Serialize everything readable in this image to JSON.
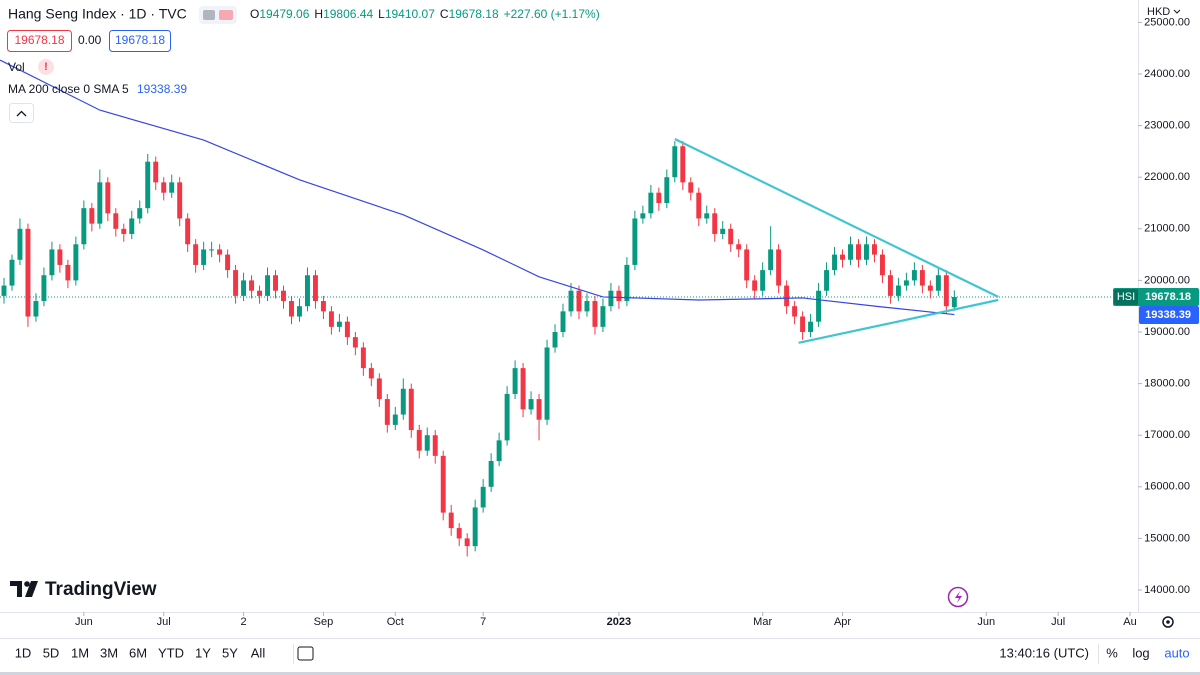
{
  "chart_data": {
    "type": "candlestick",
    "title": "Hang Seng Index · 1D · TVC",
    "ohlc_labels": [
      "O",
      "H",
      "L",
      "C"
    ],
    "change_label": "+227.60 (+1.17%)",
    "spread_label": "0.00",
    "volume_label": "Vol",
    "volume_alert": "!",
    "currency": "HKD",
    "symbol": "HSI",
    "brand": "TradingView",
    "clock": "13:40:16 (UTC)",
    "ranges": [
      "1D",
      "5D",
      "1M",
      "3M",
      "6M",
      "YTD",
      "1Y",
      "5Y",
      "All"
    ],
    "scale_options": [
      "%",
      "log",
      "auto"
    ],
    "up_color": "#089981",
    "down_color": "#f23645",
    "xlim": [
      -0.5,
      142
    ],
    "ylim": [
      13225,
      25434
    ],
    "xticks": [
      {
        "value": 10,
        "label": "Jun"
      },
      {
        "value": 20,
        "label": "Jul"
      },
      {
        "value": 30,
        "label": "2"
      },
      {
        "value": 40,
        "label": "Sep"
      },
      {
        "value": 49,
        "label": "Oct"
      },
      {
        "value": 60,
        "label": "7"
      },
      {
        "value": 77,
        "label": "2023"
      },
      {
        "value": 95,
        "label": "Mar"
      },
      {
        "value": 105,
        "label": "Apr"
      },
      {
        "value": 123,
        "label": "Jun"
      },
      {
        "value": 132,
        "label": "Jul"
      },
      {
        "value": 141,
        "label": "Au"
      }
    ],
    "yticks": [
      {
        "value": 25000,
        "label": "25000.00"
      },
      {
        "value": 24000,
        "label": "24000.00"
      },
      {
        "value": 23000,
        "label": "23000.00"
      },
      {
        "value": 22000,
        "label": "22000.00"
      },
      {
        "value": 21000,
        "label": "21000.00"
      },
      {
        "value": 20000,
        "label": "20000.00"
      },
      {
        "value": 19000,
        "label": "19000.00"
      },
      {
        "value": 18000,
        "label": "18000.00"
      },
      {
        "value": 17000,
        "label": "17000.00"
      },
      {
        "value": 16000,
        "label": "16000.00"
      },
      {
        "value": 15000,
        "label": "15000.00"
      },
      {
        "value": 14000,
        "label": "14000.00"
      }
    ],
    "candles": [
      [
        19700,
        20050,
        19550,
        19900
      ],
      [
        19900,
        20500,
        19800,
        20400
      ],
      [
        20400,
        21200,
        20300,
        21000
      ],
      [
        21000,
        21100,
        19100,
        19300
      ],
      [
        19300,
        19750,
        19200,
        19600
      ],
      [
        19600,
        20250,
        19500,
        20100
      ],
      [
        20100,
        20750,
        20000,
        20600
      ],
      [
        20600,
        20700,
        20150,
        20300
      ],
      [
        20300,
        20400,
        19850,
        20000
      ],
      [
        20000,
        20850,
        19900,
        20700
      ],
      [
        20700,
        21550,
        20600,
        21400
      ],
      [
        21400,
        21500,
        20950,
        21100
      ],
      [
        21100,
        22150,
        21000,
        21900
      ],
      [
        21900,
        22000,
        21150,
        21300
      ],
      [
        21300,
        21400,
        20850,
        21000
      ],
      [
        21000,
        21100,
        20750,
        20900
      ],
      [
        20900,
        21350,
        20800,
        21200
      ],
      [
        21200,
        21550,
        21100,
        21400
      ],
      [
        21400,
        22450,
        21300,
        22300
      ],
      [
        22300,
        22400,
        21750,
        21900
      ],
      [
        21900,
        22000,
        21550,
        21700
      ],
      [
        21700,
        22050,
        21600,
        21900
      ],
      [
        21900,
        22000,
        21050,
        21200
      ],
      [
        21200,
        21300,
        20550,
        20700
      ],
      [
        20700,
        20800,
        20150,
        20300
      ],
      [
        20300,
        20750,
        20200,
        20600
      ],
      [
        20600,
        20750,
        20450,
        20600
      ],
      [
        20600,
        20700,
        20350,
        20500
      ],
      [
        20500,
        20600,
        20050,
        20200
      ],
      [
        20200,
        20300,
        19550,
        19700
      ],
      [
        19700,
        20150,
        19600,
        20000
      ],
      [
        20000,
        20100,
        19650,
        19800
      ],
      [
        19800,
        19900,
        19550,
        19700
      ],
      [
        19700,
        20250,
        19600,
        20100
      ],
      [
        20100,
        20200,
        19650,
        19800
      ],
      [
        19800,
        19900,
        19450,
        19600
      ],
      [
        19600,
        19700,
        19150,
        19300
      ],
      [
        19300,
        19650,
        19200,
        19500
      ],
      [
        19500,
        20250,
        19400,
        20100
      ],
      [
        20100,
        20200,
        19450,
        19600
      ],
      [
        19600,
        19700,
        19250,
        19400
      ],
      [
        19400,
        19500,
        18950,
        19100
      ],
      [
        19100,
        19350,
        19000,
        19200
      ],
      [
        19200,
        19300,
        18750,
        18900
      ],
      [
        18900,
        19000,
        18550,
        18700
      ],
      [
        18700,
        18800,
        18150,
        18300
      ],
      [
        18300,
        18400,
        17950,
        18100
      ],
      [
        18100,
        18200,
        17550,
        17700
      ],
      [
        17700,
        17800,
        17050,
        17200
      ],
      [
        17200,
        17550,
        17100,
        17400
      ],
      [
        17400,
        18100,
        17300,
        17900
      ],
      [
        17900,
        18000,
        16950,
        17100
      ],
      [
        17100,
        17200,
        16550,
        16700
      ],
      [
        16700,
        17150,
        16600,
        17000
      ],
      [
        17000,
        17100,
        16450,
        16600
      ],
      [
        16600,
        16700,
        15350,
        15500
      ],
      [
        15500,
        15650,
        15050,
        15200
      ],
      [
        15200,
        15300,
        14850,
        15000
      ],
      [
        15000,
        15100,
        14650,
        14850
      ],
      [
        14850,
        15750,
        14750,
        15600
      ],
      [
        15600,
        16150,
        15500,
        16000
      ],
      [
        16000,
        16650,
        15900,
        16500
      ],
      [
        16500,
        17050,
        16400,
        16900
      ],
      [
        16900,
        17950,
        16800,
        17800
      ],
      [
        17800,
        18450,
        17700,
        18300
      ],
      [
        18300,
        18400,
        17350,
        17500
      ],
      [
        17500,
        17850,
        17400,
        17700
      ],
      [
        17700,
        17800,
        16900,
        17300
      ],
      [
        17300,
        18850,
        17200,
        18700
      ],
      [
        18700,
        19150,
        18600,
        19000
      ],
      [
        19000,
        19550,
        18900,
        19400
      ],
      [
        19400,
        19950,
        19300,
        19800
      ],
      [
        19800,
        19900,
        19250,
        19400
      ],
      [
        19400,
        19750,
        19300,
        19600
      ],
      [
        19600,
        19700,
        18950,
        19100
      ],
      [
        19100,
        19650,
        19000,
        19500
      ],
      [
        19500,
        19950,
        19400,
        19800
      ],
      [
        19800,
        19900,
        19450,
        19600
      ],
      [
        19600,
        20450,
        19500,
        20300
      ],
      [
        20300,
        21350,
        20200,
        21200
      ],
      [
        21200,
        21450,
        21100,
        21300
      ],
      [
        21300,
        21850,
        21200,
        21700
      ],
      [
        21700,
        21800,
        21350,
        21500
      ],
      [
        21500,
        22150,
        21400,
        22000
      ],
      [
        22000,
        22700,
        21900,
        22600
      ],
      [
        22600,
        22700,
        21750,
        21900
      ],
      [
        21900,
        22000,
        21550,
        21700
      ],
      [
        21700,
        21800,
        21050,
        21200
      ],
      [
        21200,
        21450,
        21100,
        21300
      ],
      [
        21300,
        21400,
        20750,
        20900
      ],
      [
        20900,
        21150,
        20800,
        21000
      ],
      [
        21000,
        21100,
        20550,
        20700
      ],
      [
        20700,
        20800,
        20450,
        20600
      ],
      [
        20600,
        20700,
        19850,
        20000
      ],
      [
        20000,
        20100,
        19650,
        19800
      ],
      [
        19800,
        20350,
        19700,
        20200
      ],
      [
        20200,
        21050,
        20100,
        20600
      ],
      [
        20600,
        20700,
        19750,
        19900
      ],
      [
        19900,
        20000,
        19350,
        19500
      ],
      [
        19500,
        19600,
        19150,
        19300
      ],
      [
        19300,
        19400,
        18850,
        19000
      ],
      [
        19000,
        19350,
        18900,
        19200
      ],
      [
        19200,
        19950,
        19100,
        19800
      ],
      [
        19800,
        20350,
        19700,
        20200
      ],
      [
        20200,
        20650,
        20100,
        20500
      ],
      [
        20500,
        20600,
        20250,
        20400
      ],
      [
        20400,
        20850,
        20300,
        20700
      ],
      [
        20700,
        20800,
        20250,
        20400
      ],
      [
        20400,
        20850,
        20300,
        20700
      ],
      [
        20700,
        20800,
        20350,
        20500
      ],
      [
        20500,
        20600,
        19950,
        20100
      ],
      [
        20100,
        20200,
        19550,
        19700
      ],
      [
        19700,
        20050,
        19600,
        19900
      ],
      [
        19900,
        20150,
        19800,
        20000
      ],
      [
        20000,
        20350,
        19900,
        20200
      ],
      [
        20200,
        20300,
        19750,
        19900
      ],
      [
        19900,
        20000,
        19650,
        19800
      ],
      [
        19800,
        20250,
        19700,
        20100
      ],
      [
        20100,
        20200,
        19350,
        19500
      ],
      [
        19479.06,
        19806.44,
        19410.07,
        19678.18
      ]
    ],
    "ma": {
      "name": "MA 200 close 0 SMA 5",
      "color": "#3846e0",
      "x": [
        -0.5,
        12,
        25,
        37,
        50,
        60,
        67,
        75,
        87,
        100,
        110,
        119
      ],
      "values": [
        24270,
        23300,
        22720,
        21950,
        21270,
        20590,
        20070,
        19680,
        19620,
        19660,
        19485,
        19338.39
      ]
    },
    "trendlines": {
      "color": "#3ec5d3",
      "lines": [
        {
          "x": [
            84,
            124.5
          ],
          "values": [
            22740,
            19680
          ]
        },
        {
          "x": [
            99.5,
            124.5
          ],
          "values": [
            18790,
            19620
          ]
        }
      ]
    }
  }
}
